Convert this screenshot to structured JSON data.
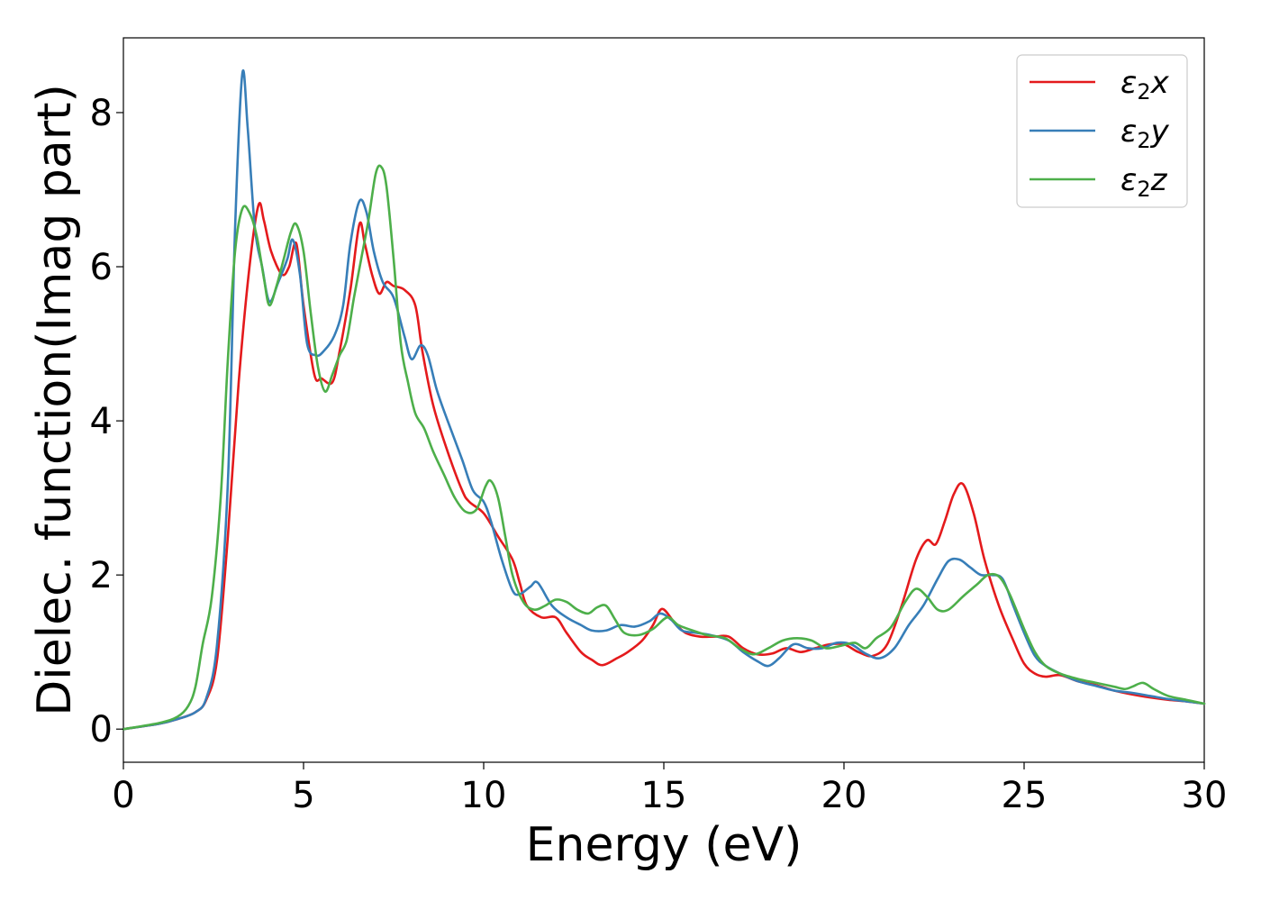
{
  "chart_data": {
    "type": "line",
    "title": "",
    "xlabel": "Energy (eV)",
    "ylabel": "Dielec. function(Imag part)",
    "xlim": [
      0,
      30
    ],
    "ylim": [
      -0.43,
      8.97
    ],
    "xticks": [
      0,
      5,
      10,
      15,
      20,
      25,
      30
    ],
    "yticks": [
      0,
      2,
      4,
      6,
      8
    ],
    "grid": false,
    "legend_position": "top-right",
    "colors": {
      "x": "#e41a1c",
      "y": "#377eb8",
      "z": "#4daf4a"
    },
    "series": [
      {
        "name": "ε2x",
        "legend_main": "ε",
        "legend_sub": "2",
        "legend_suffix": "x",
        "color": "#e41a1c",
        "points": [
          [
            0,
            0
          ],
          [
            1,
            0.07
          ],
          [
            1.5,
            0.13
          ],
          [
            2,
            0.22
          ],
          [
            2.3,
            0.38
          ],
          [
            2.6,
            0.9
          ],
          [
            2.9,
            2.5
          ],
          [
            3.2,
            4.5
          ],
          [
            3.5,
            6.0
          ],
          [
            3.75,
            6.8
          ],
          [
            3.9,
            6.6
          ],
          [
            4.1,
            6.2
          ],
          [
            4.4,
            5.9
          ],
          [
            4.6,
            6.0
          ],
          [
            4.8,
            6.3
          ],
          [
            5.0,
            5.5
          ],
          [
            5.3,
            4.6
          ],
          [
            5.5,
            4.55
          ],
          [
            5.8,
            4.5
          ],
          [
            6.0,
            4.9
          ],
          [
            6.3,
            5.7
          ],
          [
            6.55,
            6.55
          ],
          [
            6.7,
            6.3
          ],
          [
            6.9,
            5.9
          ],
          [
            7.1,
            5.65
          ],
          [
            7.3,
            5.8
          ],
          [
            7.5,
            5.75
          ],
          [
            7.8,
            5.7
          ],
          [
            8.1,
            5.5
          ],
          [
            8.3,
            4.9
          ],
          [
            8.6,
            4.2
          ],
          [
            9.0,
            3.6
          ],
          [
            9.4,
            3.1
          ],
          [
            9.6,
            2.95
          ],
          [
            10.0,
            2.8
          ],
          [
            10.4,
            2.5
          ],
          [
            10.8,
            2.2
          ],
          [
            11.0,
            1.9
          ],
          [
            11.2,
            1.6
          ],
          [
            11.6,
            1.45
          ],
          [
            12.0,
            1.45
          ],
          [
            12.3,
            1.25
          ],
          [
            12.7,
            1.0
          ],
          [
            13.0,
            0.9
          ],
          [
            13.3,
            0.83
          ],
          [
            13.7,
            0.92
          ],
          [
            14.0,
            1.0
          ],
          [
            14.4,
            1.15
          ],
          [
            14.7,
            1.35
          ],
          [
            14.95,
            1.56
          ],
          [
            15.3,
            1.38
          ],
          [
            15.6,
            1.25
          ],
          [
            16.0,
            1.2
          ],
          [
            16.4,
            1.2
          ],
          [
            16.8,
            1.2
          ],
          [
            17.2,
            1.05
          ],
          [
            17.6,
            0.97
          ],
          [
            18.0,
            0.98
          ],
          [
            18.4,
            1.05
          ],
          [
            18.8,
            1.0
          ],
          [
            19.2,
            1.05
          ],
          [
            19.6,
            1.1
          ],
          [
            20.0,
            1.1
          ],
          [
            20.4,
            1.0
          ],
          [
            20.8,
            0.95
          ],
          [
            21.2,
            1.1
          ],
          [
            21.6,
            1.6
          ],
          [
            22.0,
            2.2
          ],
          [
            22.3,
            2.45
          ],
          [
            22.55,
            2.4
          ],
          [
            22.8,
            2.7
          ],
          [
            23.05,
            3.05
          ],
          [
            23.3,
            3.18
          ],
          [
            23.6,
            2.8
          ],
          [
            23.9,
            2.2
          ],
          [
            24.3,
            1.6
          ],
          [
            24.7,
            1.15
          ],
          [
            25.0,
            0.85
          ],
          [
            25.3,
            0.72
          ],
          [
            25.6,
            0.68
          ],
          [
            26.0,
            0.7
          ],
          [
            26.5,
            0.62
          ],
          [
            27.0,
            0.57
          ],
          [
            27.5,
            0.5
          ],
          [
            28.0,
            0.45
          ],
          [
            28.5,
            0.41
          ],
          [
            29.0,
            0.38
          ],
          [
            29.5,
            0.36
          ],
          [
            30.0,
            0.33
          ]
        ]
      },
      {
        "name": "ε2y",
        "legend_main": "ε",
        "legend_sub": "2",
        "legend_suffix": "y",
        "color": "#377eb8",
        "points": [
          [
            0,
            0
          ],
          [
            1,
            0.07
          ],
          [
            1.5,
            0.13
          ],
          [
            2,
            0.22
          ],
          [
            2.3,
            0.4
          ],
          [
            2.6,
            1.1
          ],
          [
            2.9,
            3.2
          ],
          [
            3.1,
            6.5
          ],
          [
            3.3,
            8.5
          ],
          [
            3.45,
            7.8
          ],
          [
            3.65,
            6.5
          ],
          [
            3.85,
            6.0
          ],
          [
            4.05,
            5.55
          ],
          [
            4.3,
            5.8
          ],
          [
            4.55,
            6.1
          ],
          [
            4.7,
            6.35
          ],
          [
            4.9,
            5.9
          ],
          [
            5.1,
            5.0
          ],
          [
            5.35,
            4.85
          ],
          [
            5.55,
            4.9
          ],
          [
            5.85,
            5.1
          ],
          [
            6.1,
            5.5
          ],
          [
            6.3,
            6.3
          ],
          [
            6.55,
            6.85
          ],
          [
            6.75,
            6.7
          ],
          [
            6.95,
            6.2
          ],
          [
            7.2,
            5.8
          ],
          [
            7.5,
            5.6
          ],
          [
            7.8,
            5.1
          ],
          [
            8.0,
            4.8
          ],
          [
            8.25,
            4.98
          ],
          [
            8.45,
            4.85
          ],
          [
            8.7,
            4.4
          ],
          [
            9.0,
            4.0
          ],
          [
            9.4,
            3.5
          ],
          [
            9.7,
            3.1
          ],
          [
            10.0,
            2.95
          ],
          [
            10.2,
            2.7
          ],
          [
            10.5,
            2.2
          ],
          [
            10.8,
            1.8
          ],
          [
            11.0,
            1.75
          ],
          [
            11.3,
            1.85
          ],
          [
            11.5,
            1.9
          ],
          [
            11.9,
            1.6
          ],
          [
            12.3,
            1.45
          ],
          [
            12.7,
            1.35
          ],
          [
            13.0,
            1.28
          ],
          [
            13.4,
            1.28
          ],
          [
            13.8,
            1.35
          ],
          [
            14.2,
            1.33
          ],
          [
            14.6,
            1.4
          ],
          [
            14.9,
            1.5
          ],
          [
            15.2,
            1.42
          ],
          [
            15.5,
            1.28
          ],
          [
            15.9,
            1.25
          ],
          [
            16.3,
            1.22
          ],
          [
            16.8,
            1.15
          ],
          [
            17.2,
            1.0
          ],
          [
            17.6,
            0.88
          ],
          [
            17.9,
            0.82
          ],
          [
            18.2,
            0.92
          ],
          [
            18.6,
            1.1
          ],
          [
            19.0,
            1.05
          ],
          [
            19.4,
            1.05
          ],
          [
            19.8,
            1.12
          ],
          [
            20.2,
            1.1
          ],
          [
            20.6,
            0.98
          ],
          [
            21.0,
            0.92
          ],
          [
            21.4,
            1.05
          ],
          [
            21.8,
            1.35
          ],
          [
            22.2,
            1.6
          ],
          [
            22.6,
            1.95
          ],
          [
            22.9,
            2.18
          ],
          [
            23.2,
            2.2
          ],
          [
            23.5,
            2.1
          ],
          [
            23.8,
            2.0
          ],
          [
            24.1,
            2.0
          ],
          [
            24.4,
            1.95
          ],
          [
            24.7,
            1.6
          ],
          [
            25.0,
            1.25
          ],
          [
            25.3,
            0.95
          ],
          [
            25.6,
            0.82
          ],
          [
            26.0,
            0.72
          ],
          [
            26.5,
            0.62
          ],
          [
            27.0,
            0.56
          ],
          [
            27.5,
            0.5
          ],
          [
            28.0,
            0.47
          ],
          [
            28.5,
            0.43
          ],
          [
            29.0,
            0.39
          ],
          [
            29.5,
            0.36
          ],
          [
            30.0,
            0.33
          ]
        ]
      },
      {
        "name": "ε2z",
        "legend_main": "ε",
        "legend_sub": "2",
        "legend_suffix": "z",
        "color": "#4daf4a",
        "points": [
          [
            0,
            0
          ],
          [
            1,
            0.08
          ],
          [
            1.5,
            0.16
          ],
          [
            1.8,
            0.3
          ],
          [
            2.0,
            0.55
          ],
          [
            2.2,
            1.1
          ],
          [
            2.45,
            1.7
          ],
          [
            2.7,
            3.0
          ],
          [
            2.9,
            4.8
          ],
          [
            3.1,
            6.2
          ],
          [
            3.3,
            6.75
          ],
          [
            3.5,
            6.7
          ],
          [
            3.7,
            6.4
          ],
          [
            3.9,
            5.85
          ],
          [
            4.05,
            5.5
          ],
          [
            4.25,
            5.75
          ],
          [
            4.45,
            6.1
          ],
          [
            4.65,
            6.45
          ],
          [
            4.8,
            6.55
          ],
          [
            5.0,
            6.2
          ],
          [
            5.2,
            5.4
          ],
          [
            5.4,
            4.7
          ],
          [
            5.6,
            4.38
          ],
          [
            5.8,
            4.6
          ],
          [
            6.0,
            4.85
          ],
          [
            6.2,
            5.05
          ],
          [
            6.4,
            5.6
          ],
          [
            6.6,
            6.1
          ],
          [
            6.8,
            6.6
          ],
          [
            7.0,
            7.2
          ],
          [
            7.15,
            7.3
          ],
          [
            7.3,
            7.05
          ],
          [
            7.5,
            6.1
          ],
          [
            7.7,
            5.0
          ],
          [
            7.9,
            4.5
          ],
          [
            8.1,
            4.1
          ],
          [
            8.35,
            3.9
          ],
          [
            8.6,
            3.6
          ],
          [
            8.9,
            3.3
          ],
          [
            9.2,
            3.0
          ],
          [
            9.5,
            2.82
          ],
          [
            9.8,
            2.85
          ],
          [
            10.05,
            3.15
          ],
          [
            10.2,
            3.22
          ],
          [
            10.4,
            3.0
          ],
          [
            10.6,
            2.5
          ],
          [
            10.8,
            2.0
          ],
          [
            11.1,
            1.65
          ],
          [
            11.4,
            1.55
          ],
          [
            11.7,
            1.6
          ],
          [
            12.0,
            1.68
          ],
          [
            12.3,
            1.65
          ],
          [
            12.6,
            1.55
          ],
          [
            12.9,
            1.5
          ],
          [
            13.15,
            1.58
          ],
          [
            13.4,
            1.6
          ],
          [
            13.65,
            1.42
          ],
          [
            13.9,
            1.25
          ],
          [
            14.3,
            1.22
          ],
          [
            14.7,
            1.3
          ],
          [
            15.1,
            1.45
          ],
          [
            15.4,
            1.35
          ],
          [
            15.8,
            1.28
          ],
          [
            16.2,
            1.22
          ],
          [
            16.7,
            1.18
          ],
          [
            17.1,
            1.05
          ],
          [
            17.5,
            0.97
          ],
          [
            17.9,
            1.05
          ],
          [
            18.3,
            1.15
          ],
          [
            18.7,
            1.18
          ],
          [
            19.1,
            1.15
          ],
          [
            19.5,
            1.05
          ],
          [
            19.9,
            1.08
          ],
          [
            20.3,
            1.12
          ],
          [
            20.6,
            1.05
          ],
          [
            20.9,
            1.18
          ],
          [
            21.3,
            1.32
          ],
          [
            21.7,
            1.65
          ],
          [
            22.0,
            1.82
          ],
          [
            22.3,
            1.72
          ],
          [
            22.6,
            1.55
          ],
          [
            22.9,
            1.55
          ],
          [
            23.3,
            1.72
          ],
          [
            23.7,
            1.88
          ],
          [
            24.0,
            2.0
          ],
          [
            24.3,
            1.98
          ],
          [
            24.6,
            1.75
          ],
          [
            25.0,
            1.3
          ],
          [
            25.3,
            1.0
          ],
          [
            25.6,
            0.82
          ],
          [
            26.0,
            0.72
          ],
          [
            26.5,
            0.65
          ],
          [
            27.0,
            0.6
          ],
          [
            27.5,
            0.55
          ],
          [
            27.8,
            0.52
          ],
          [
            28.0,
            0.55
          ],
          [
            28.3,
            0.6
          ],
          [
            28.6,
            0.52
          ],
          [
            29.0,
            0.43
          ],
          [
            29.5,
            0.38
          ],
          [
            30.0,
            0.33
          ]
        ]
      }
    ]
  }
}
